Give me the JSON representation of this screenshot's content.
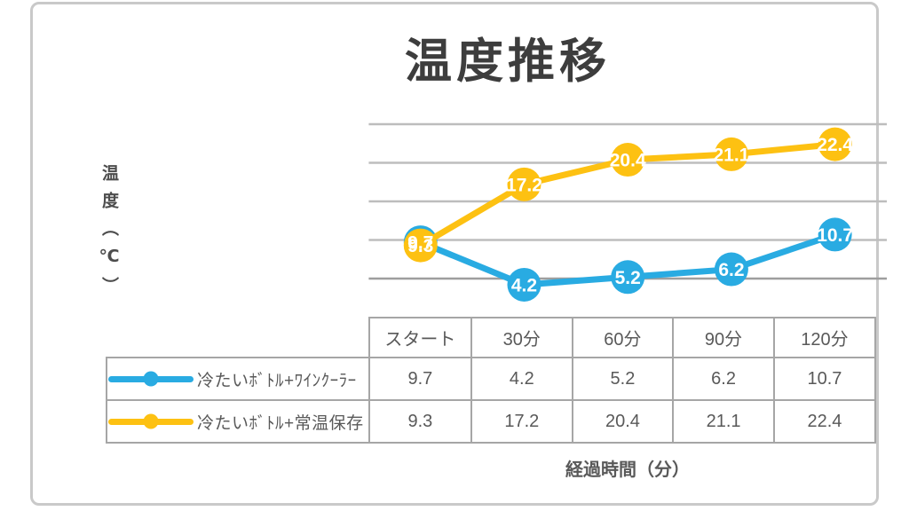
{
  "title": "温度推移",
  "y_axis_label": "温度（℃）",
  "x_axis_label": "経過時間（分）",
  "colors": {
    "series_blue": "#29abe2",
    "series_yellow": "#fdc112",
    "grid": "#bdbdbd",
    "grid_bottom": "#9e9e9e",
    "table_border": "#a6a6a6",
    "text": "#595959",
    "title_text": "#3d3d3d",
    "marker_label": "#ffffff"
  },
  "chart_data": {
    "type": "line",
    "title": "温度推移",
    "xlabel": "経過時間（分）",
    "ylabel": "温度（℃）",
    "categories": [
      "スタート",
      "30分",
      "60分",
      "90分",
      "120分"
    ],
    "series": [
      {
        "name": "冷たいﾎﾞﾄﾙ+ﾜｲﾝｸｰﾗｰ",
        "color": "#29abe2",
        "values": [
          9.7,
          4.2,
          5.2,
          6.2,
          10.7
        ]
      },
      {
        "name": "冷たいﾎﾞﾄﾙ+常温保存",
        "color": "#fdc112",
        "values": [
          9.3,
          17.2,
          20.4,
          21.1,
          22.4
        ]
      }
    ],
    "ylim": [
      0,
      25
    ],
    "grid_step": 5,
    "grid": true,
    "data_labels": true,
    "legend_position": "table-left-column"
  }
}
